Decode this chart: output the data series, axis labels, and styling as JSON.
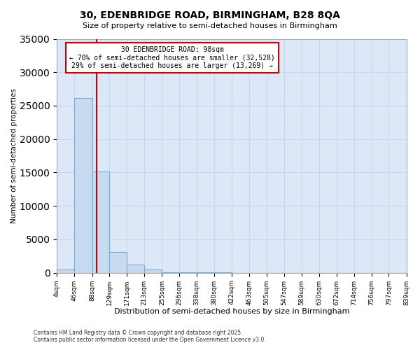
{
  "title_line1": "30, EDENBRIDGE ROAD, BIRMINGHAM, B28 8QA",
  "title_line2": "Size of property relative to semi-detached houses in Birmingham",
  "xlabel": "Distribution of semi-detached houses by size in Birmingham",
  "ylabel": "Number of semi-detached properties",
  "annotation_title": "30 EDENBRIDGE ROAD: 98sqm",
  "annotation_line2": "← 70% of semi-detached houses are smaller (32,528)",
  "annotation_line3": "29% of semi-detached houses are larger (13,269) →",
  "footer_line1": "Contains HM Land Registry data © Crown copyright and database right 2025.",
  "footer_line2": "Contains public sector information licensed under the Open Government Licence v3.0.",
  "property_size": 98,
  "bar_color": "#c8daf0",
  "bar_edge_color": "#7aabcf",
  "vline_color": "#cc0000",
  "annotation_box_color": "#ffffff",
  "annotation_box_edge": "#cc0000",
  "grid_color": "#c8d8ec",
  "background_color": "#ffffff",
  "plot_bg_color": "#dce8f8",
  "bin_edges": [
    4,
    46,
    88,
    129,
    171,
    213,
    255,
    296,
    338,
    380,
    422,
    463,
    505,
    547,
    589,
    630,
    672,
    714,
    756,
    797,
    839
  ],
  "bin_labels": [
    "4sqm",
    "46sqm",
    "88sqm",
    "129sqm",
    "171sqm",
    "213sqm",
    "255sqm",
    "296sqm",
    "338sqm",
    "380sqm",
    "422sqm",
    "463sqm",
    "505sqm",
    "547sqm",
    "589sqm",
    "630sqm",
    "672sqm",
    "714sqm",
    "756sqm",
    "797sqm",
    "839sqm"
  ],
  "bar_heights": [
    480,
    26100,
    15200,
    3150,
    1200,
    480,
    120,
    70,
    40,
    25,
    15,
    10,
    8,
    6,
    5,
    4,
    3,
    2,
    1,
    1
  ],
  "ylim": [
    0,
    35000
  ],
  "yticks": [
    0,
    5000,
    10000,
    15000,
    20000,
    25000,
    30000,
    35000
  ]
}
